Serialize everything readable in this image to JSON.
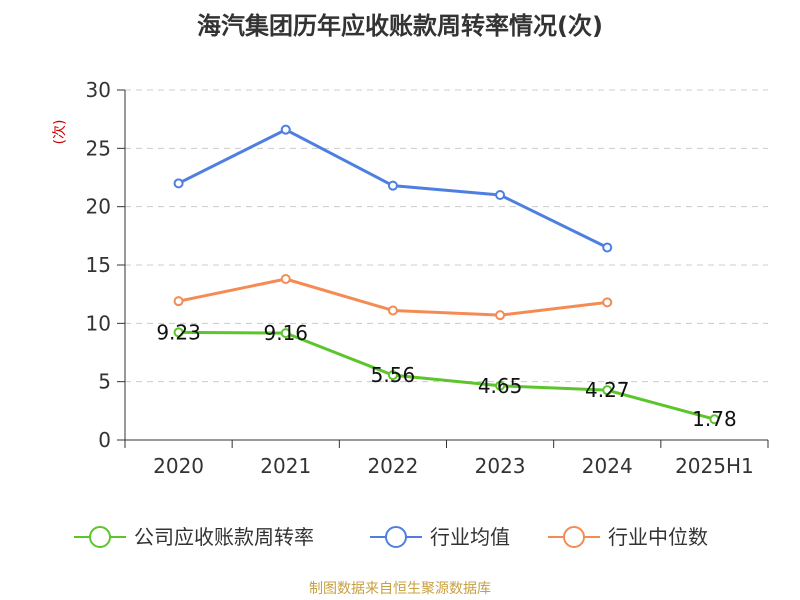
{
  "chart_data": {
    "type": "line",
    "title": "海汽集团历年应收账款周转率情况(次)",
    "ylabel": "(次)",
    "xlabel": "",
    "categories": [
      "2020",
      "2021",
      "2022",
      "2023",
      "2024",
      "2025H1"
    ],
    "ylim": [
      0,
      30
    ],
    "yticks": [
      0,
      5,
      10,
      15,
      20,
      25,
      30
    ],
    "grid": true,
    "legend_position": "bottom",
    "series": [
      {
        "name": "公司应收账款周转率",
        "color": "#5cc52c",
        "values": [
          9.23,
          9.16,
          5.56,
          4.65,
          4.27,
          1.78
        ],
        "labels": [
          "9.23",
          "9.16",
          "5.56",
          "4.65",
          "4.27",
          "1.78"
        ],
        "show_labels": true
      },
      {
        "name": "行业均值",
        "color": "#4e7fe0",
        "values": [
          22.0,
          26.6,
          21.8,
          21.0,
          16.5,
          null
        ],
        "show_labels": false
      },
      {
        "name": "行业中位数",
        "color": "#f58b54",
        "values": [
          11.9,
          13.8,
          11.1,
          10.7,
          11.8,
          null
        ],
        "show_labels": false
      }
    ]
  },
  "source": "制图数据来自恒生聚源数据库"
}
